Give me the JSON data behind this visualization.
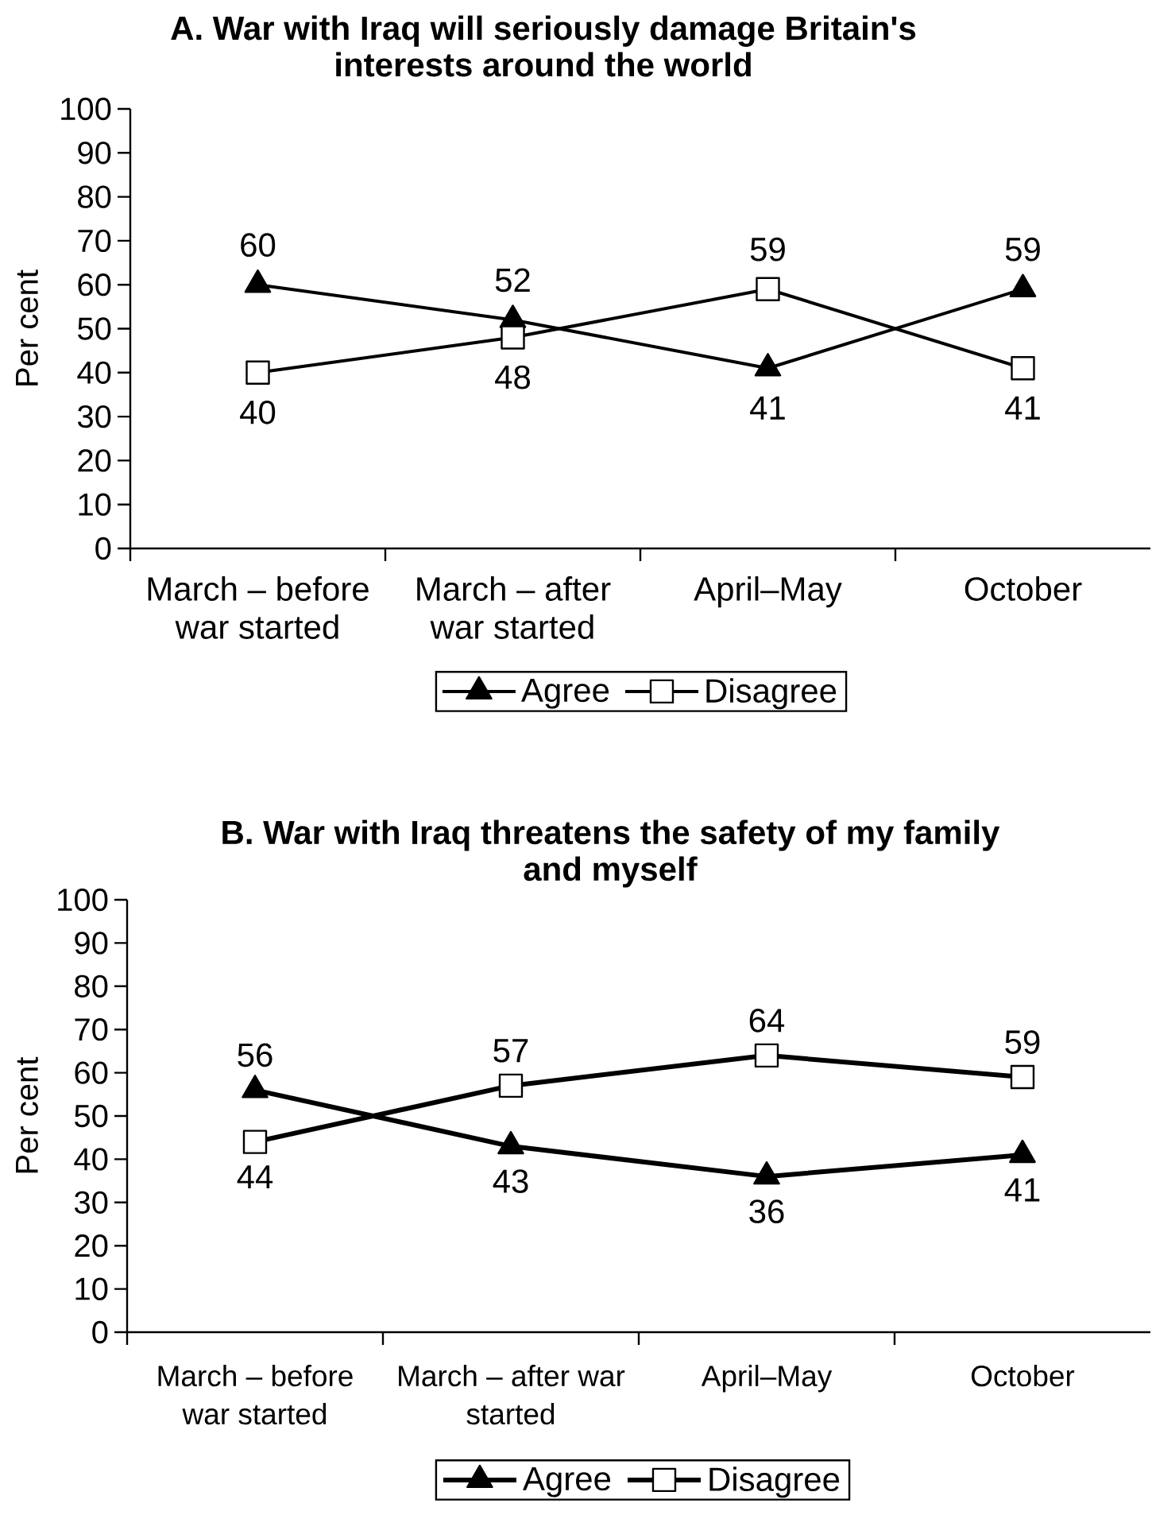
{
  "chart_data": [
    {
      "type": "line",
      "title": "A. War with Iraq will seriously damage Britain's interests around the world",
      "ylabel": "Per cent",
      "categories": [
        "March – before war started",
        "March – after war started",
        "April–May",
        "October"
      ],
      "series": [
        {
          "name": "Agree",
          "color": "#000000",
          "marker": "triangle",
          "values": [
            60,
            52,
            41,
            59
          ]
        },
        {
          "name": "Disagree",
          "color": "#000000",
          "marker": "square",
          "values": [
            40,
            48,
            59,
            41
          ]
        }
      ],
      "ylim": [
        0,
        100
      ],
      "yticks": [
        0,
        10,
        20,
        30,
        40,
        50,
        60,
        70,
        80,
        90,
        100
      ],
      "legend": "bottom",
      "data_labels": true,
      "line_style": "solid"
    },
    {
      "type": "line",
      "title": "B. War with Iraq threatens the safety of my family and myself",
      "ylabel": "Per cent",
      "categories": [
        "March – before war started",
        "March – after war started",
        "April–May",
        "October"
      ],
      "series": [
        {
          "name": "Agree",
          "color": "#000000",
          "marker": "triangle",
          "values": [
            56,
            43,
            36,
            41
          ]
        },
        {
          "name": "Disagree",
          "color": "#000000",
          "marker": "square",
          "values": [
            44,
            57,
            64,
            59
          ]
        }
      ],
      "ylim": [
        0,
        100
      ],
      "yticks": [
        0,
        10,
        20,
        30,
        40,
        50,
        60,
        70,
        80,
        90,
        100
      ],
      "legend": "bottom",
      "data_labels": true,
      "line_style": "solid"
    }
  ]
}
